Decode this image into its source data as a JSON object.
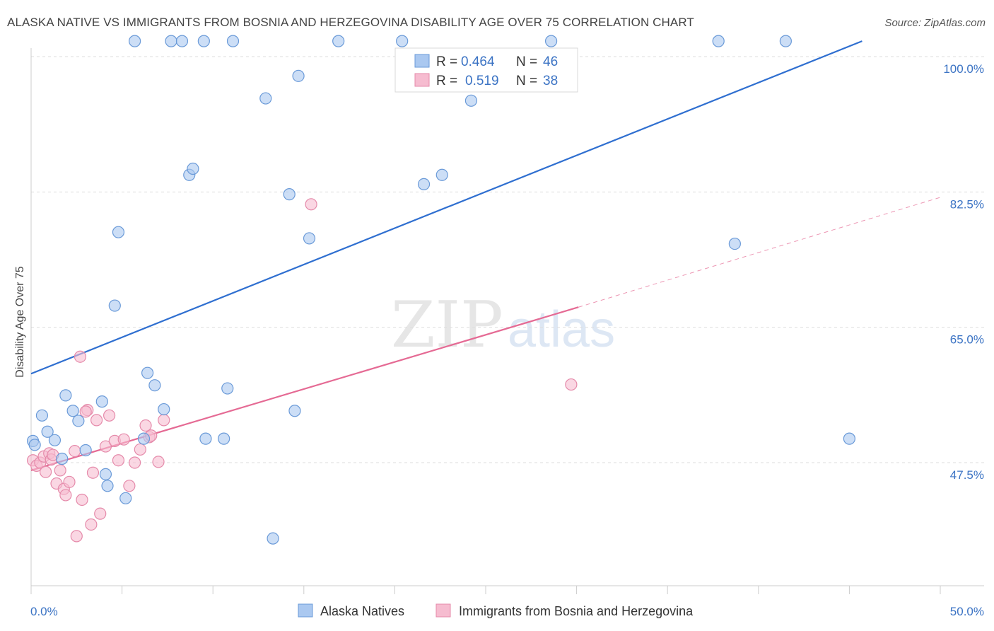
{
  "header": {
    "title": "ALASKA NATIVE VS IMMIGRANTS FROM BOSNIA AND HERZEGOVINA DISABILITY AGE OVER 75 CORRELATION CHART",
    "source": "Source: ZipAtlas.com"
  },
  "watermark": {
    "zip": "ZIP",
    "atlas": "atlas"
  },
  "legend": {
    "r_label": "R =",
    "n_label": "N =",
    "series": [
      {
        "r": "0.464",
        "n": "46"
      },
      {
        "r": "0.519",
        "n": "38"
      }
    ]
  },
  "bottom_legend": [
    "Alaska Natives",
    "Immigrants from Bosnia and Herzegovina"
  ],
  "chart_data": {
    "type": "scatter",
    "title": "ALASKA NATIVE VS IMMIGRANTS FROM BOSNIA AND HERZEGOVINA DISABILITY AGE OVER 75 CORRELATION CHART",
    "xlabel": "",
    "ylabel": "Disability Age Over 75",
    "xlim": [
      0,
      50
    ],
    "ylim": [
      35,
      102
    ],
    "x_tick_labels": [
      "0.0%",
      "50.0%"
    ],
    "y_ticks": [
      47.5,
      65.0,
      82.5,
      100.0
    ],
    "y_tick_labels": [
      "47.5%",
      "65.0%",
      "82.5%",
      "100.0%"
    ],
    "grid": true,
    "legend_position": "top-center",
    "colors": {
      "blue_fill": "#aac8f0",
      "blue_stroke": "#6a9ad8",
      "blue_line": "#2f6fd0",
      "pink_fill": "#f6bcd0",
      "pink_stroke": "#e58aaa",
      "pink_line": "#e56a94"
    },
    "series": [
      {
        "name": "Alaska Natives",
        "color": "#2f6fd0",
        "trend": {
          "x": [
            0,
            45.7
          ],
          "y": [
            59.0,
            102.0
          ],
          "dashed_extension": false
        },
        "points": [
          [
            0.1,
            50.3
          ],
          [
            0.6,
            53.6
          ],
          [
            0.9,
            51.5
          ],
          [
            1.3,
            50.4
          ],
          [
            1.7,
            48.0
          ],
          [
            1.9,
            56.2
          ],
          [
            2.3,
            54.2
          ],
          [
            2.6,
            52.9
          ],
          [
            3.0,
            49.1
          ],
          [
            3.9,
            55.4
          ],
          [
            4.1,
            46.0
          ],
          [
            4.6,
            67.8
          ],
          [
            4.8,
            77.3
          ],
          [
            5.2,
            42.9
          ],
          [
            5.7,
            102.0
          ],
          [
            6.2,
            50.6
          ],
          [
            6.4,
            59.1
          ],
          [
            6.8,
            57.5
          ],
          [
            7.3,
            54.4
          ],
          [
            7.7,
            102.0
          ],
          [
            8.3,
            102.0
          ],
          [
            8.7,
            84.7
          ],
          [
            8.9,
            85.5
          ],
          [
            9.5,
            102.0
          ],
          [
            9.6,
            50.6
          ],
          [
            10.6,
            50.6
          ],
          [
            10.8,
            57.1
          ],
          [
            11.1,
            102.0
          ],
          [
            12.9,
            94.6
          ],
          [
            13.3,
            37.7
          ],
          [
            14.2,
            82.2
          ],
          [
            14.5,
            54.2
          ],
          [
            14.7,
            97.5
          ],
          [
            15.3,
            76.5
          ],
          [
            16.9,
            102.0
          ],
          [
            20.4,
            102.0
          ],
          [
            21.6,
            83.5
          ],
          [
            22.6,
            84.7
          ],
          [
            24.2,
            94.3
          ],
          [
            28.6,
            102.0
          ],
          [
            37.8,
            102.0
          ],
          [
            38.7,
            75.8
          ],
          [
            41.5,
            102.0
          ],
          [
            45.0,
            50.6
          ],
          [
            4.2,
            44.5
          ],
          [
            0.2,
            49.8
          ]
        ]
      },
      {
        "name": "Immigrants from Bosnia and Herzegovina",
        "color": "#e56a94",
        "trend": {
          "x": [
            0,
            30.1
          ],
          "y": [
            46.5,
            67.6
          ],
          "dashed_extension": true,
          "dashed_to": [
            50,
            81.8
          ]
        },
        "points": [
          [
            0.1,
            47.8
          ],
          [
            0.3,
            47.1
          ],
          [
            0.5,
            47.5
          ],
          [
            0.7,
            48.3
          ],
          [
            0.8,
            46.3
          ],
          [
            1.0,
            48.7
          ],
          [
            1.1,
            47.9
          ],
          [
            1.2,
            48.5
          ],
          [
            1.4,
            44.8
          ],
          [
            1.6,
            46.5
          ],
          [
            1.8,
            44.1
          ],
          [
            1.9,
            43.3
          ],
          [
            2.1,
            45.0
          ],
          [
            2.4,
            49.0
          ],
          [
            2.5,
            38.0
          ],
          [
            2.7,
            61.2
          ],
          [
            2.8,
            42.7
          ],
          [
            3.1,
            54.3
          ],
          [
            3.3,
            39.5
          ],
          [
            3.4,
            46.2
          ],
          [
            3.6,
            53.0
          ],
          [
            3.8,
            40.9
          ],
          [
            4.1,
            49.6
          ],
          [
            4.3,
            53.6
          ],
          [
            4.6,
            50.3
          ],
          [
            4.8,
            47.8
          ],
          [
            5.1,
            50.5
          ],
          [
            5.4,
            44.5
          ],
          [
            5.7,
            47.5
          ],
          [
            6.0,
            49.2
          ],
          [
            6.3,
            52.3
          ],
          [
            6.5,
            50.8
          ],
          [
            6.6,
            51.0
          ],
          [
            7.0,
            47.6
          ],
          [
            7.3,
            53.0
          ],
          [
            15.4,
            80.9
          ],
          [
            29.7,
            57.6
          ],
          [
            3.0,
            54.1
          ]
        ]
      }
    ]
  }
}
